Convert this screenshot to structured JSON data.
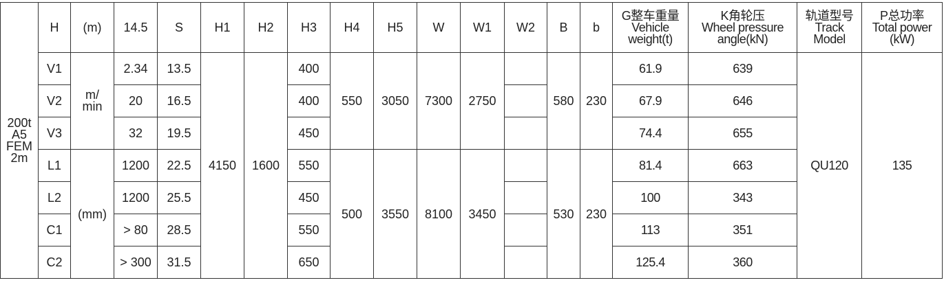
{
  "table": {
    "group_label": [
      "200t",
      "A5",
      "FEM",
      "2m"
    ],
    "headers": [
      "H",
      "(m)",
      "14.5",
      "S",
      "H1",
      "H2",
      "H3",
      "H4",
      "H5",
      "W",
      "W1",
      "W2",
      "B",
      "b"
    ],
    "header_vehicle_weight": [
      "G整车重量",
      "Vehicle",
      "weight(t)"
    ],
    "header_wheel_pressure": [
      "K角轮压",
      "Wheel pressure",
      "angle(kN)"
    ],
    "header_track": [
      "轨道型号",
      "Track",
      "Model"
    ],
    "header_power": [
      "P总功率",
      "Total power",
      "(kW)"
    ],
    "unit_upper": [
      "m/",
      "min"
    ],
    "unit_lower": "(mm)",
    "shared": {
      "h1": "4150",
      "h2": "1600",
      "track": "QU120",
      "power": "135"
    },
    "groups": [
      {
        "h4": "550",
        "h5": "3050",
        "w": "7300",
        "w1": "2750",
        "B": "580",
        "b": "230"
      },
      {
        "h4": "500",
        "h5": "3550",
        "w": "8100",
        "w1": "3450",
        "B": "530",
        "b": "230"
      }
    ],
    "rows": [
      {
        "label": "V1",
        "value": "2.34",
        "s": "13.5",
        "h3": "400",
        "w2": "",
        "weight": "61.9",
        "pressure": "639"
      },
      {
        "label": "V2",
        "value": "20",
        "s": "16.5",
        "h3": "400",
        "w2": "",
        "weight": "67.9",
        "pressure": "646"
      },
      {
        "label": "V3",
        "value": "32",
        "s": "19.5",
        "h3": "450",
        "w2": "",
        "weight": "74.4",
        "pressure": "655"
      },
      {
        "label": "L1",
        "value": "1200",
        "s": "22.5",
        "h3": "550",
        "w2": "",
        "weight": "81.4",
        "pressure": "663"
      },
      {
        "label": "L2",
        "value": "1200",
        "s": "25.5",
        "h3": "450",
        "w2": "",
        "weight": "100",
        "pressure": "343"
      },
      {
        "label": "C1",
        "value": "> 80",
        "s": "28.5",
        "h3": "550",
        "w2": "",
        "weight": "113",
        "pressure": "351"
      },
      {
        "label": "C2",
        "value": "> 300",
        "s": "31.5",
        "h3": "650",
        "w2": "",
        "weight": "125.4",
        "pressure": "360"
      }
    ]
  }
}
